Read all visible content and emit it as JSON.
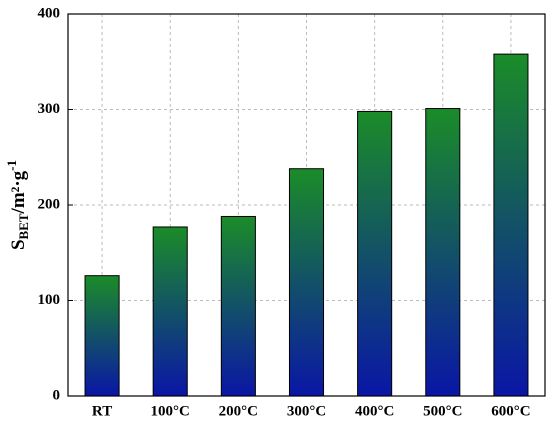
{
  "chart_data": {
    "type": "bar",
    "ylabel": [
      "S",
      "BET",
      "/m²·g",
      "-1"
    ],
    "categories": [
      "RT",
      "100°C",
      "200°C",
      "300°C",
      "400°C",
      "500°C",
      "600°C"
    ],
    "values": [
      126,
      177,
      188,
      238,
      298,
      301,
      358
    ],
    "color_top": "#1b8c28",
    "color_bottom": "#0a16a6",
    "ylim": [
      0,
      400
    ],
    "yticks": [
      0,
      100,
      200,
      300,
      400
    ],
    "grid": true
  }
}
